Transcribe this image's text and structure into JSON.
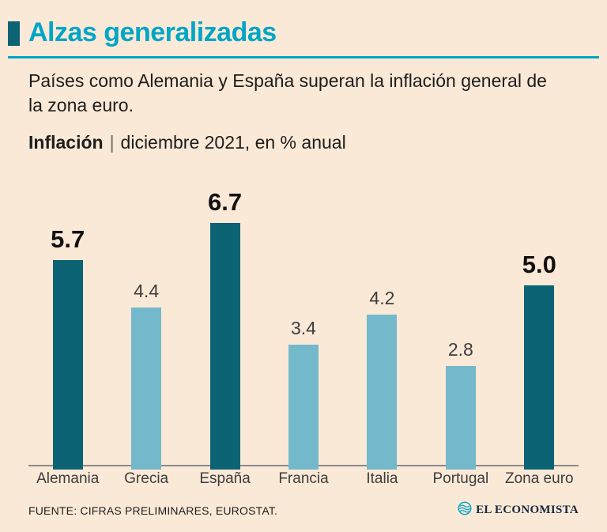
{
  "header": {
    "title": "Alzas generalizadas",
    "subtitle": "Países como Alemania y España superan la inflación general de la zona euro.",
    "kicker": {
      "bold": "Inflación",
      "separator": "|",
      "rest": "diciembre 2021, en % anual"
    }
  },
  "footer": {
    "source": "FUENTE: CIFRAS PRELIMINARES, EUROSTAT.",
    "brand": "EL ECONOMISTA"
  },
  "colors": {
    "background": "#fbe9d7",
    "accent_teal": "#00a6c6",
    "title_marker": "#0c6374",
    "bar_highlight": "#0c6374",
    "bar_regular": "#74b9cb",
    "text_dark": "#1d1d1b",
    "text_gray": "#3d3d3d"
  },
  "chart_data": {
    "type": "bar",
    "title": "Inflación | diciembre 2021, en % anual",
    "categories": [
      "Alemania",
      "Grecia",
      "España",
      "Francia",
      "Italia",
      "Portugal",
      "Zona euro"
    ],
    "values": [
      5.7,
      4.4,
      6.7,
      3.4,
      4.2,
      2.8,
      5.0
    ],
    "value_labels": [
      "5.7",
      "4.4",
      "6.7",
      "3.4",
      "4.2",
      "2.8",
      "5.0"
    ],
    "highlighted": [
      true,
      false,
      true,
      false,
      false,
      false,
      true
    ],
    "highlighted_categories": [
      "Alemania",
      "España",
      "Zona euro"
    ],
    "xlabel": "",
    "ylabel": "Inflación, % anual",
    "ylim": [
      0,
      7
    ],
    "unit": "% anual",
    "grid": false,
    "legend": false
  }
}
